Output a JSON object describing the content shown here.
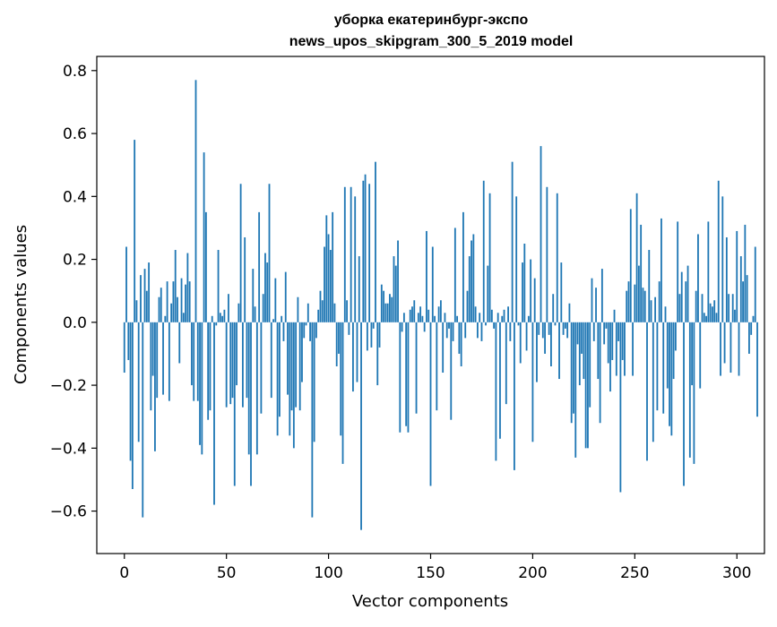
{
  "colors": {
    "bar": "#1f77b4",
    "axes": "#000000",
    "background": "#ffffff"
  },
  "chart_data": {
    "type": "bar",
    "title": "уборка екатеринбург-экспо",
    "subtitle": "news_upos_skipgram_300_5_2019 model",
    "xlabel": "Vector components",
    "ylabel": "Components values",
    "xlim": [
      -13.5,
      313.5
    ],
    "ylim": [
      -0.735,
      0.845
    ],
    "xticks": [
      0,
      50,
      100,
      150,
      200,
      250,
      300
    ],
    "xtick_labels": [
      "0",
      "50",
      "100",
      "150",
      "200",
      "250",
      "300"
    ],
    "yticks": [
      -0.6,
      -0.4,
      -0.2,
      0.0,
      0.2,
      0.4,
      0.6,
      0.8
    ],
    "ytick_labels": [
      "−0.6",
      "−0.4",
      "−0.2",
      "0.0",
      "0.2",
      "0.4",
      "0.6",
      "0.8"
    ],
    "grid": false,
    "legend": "none",
    "values": [
      -0.16,
      0.24,
      -0.12,
      -0.44,
      -0.53,
      0.58,
      0.07,
      -0.38,
      0.15,
      -0.62,
      0.17,
      0.1,
      0.19,
      -0.28,
      -0.17,
      -0.41,
      -0.24,
      0.08,
      0.11,
      -0.23,
      0.02,
      0.13,
      -0.25,
      0.06,
      0.13,
      0.23,
      0.08,
      -0.13,
      0.14,
      0.03,
      0.12,
      0.22,
      0.13,
      -0.2,
      -0.25,
      0.77,
      -0.25,
      -0.39,
      -0.42,
      0.54,
      0.35,
      -0.31,
      -0.28,
      0.02,
      -0.58,
      -0.01,
      0.23,
      0.03,
      0.02,
      0.04,
      -0.27,
      0.09,
      -0.26,
      -0.24,
      -0.52,
      -0.2,
      0.06,
      0.44,
      -0.27,
      0.27,
      -0.24,
      -0.42,
      -0.52,
      0.17,
      0.05,
      -0.42,
      0.35,
      -0.29,
      0.09,
      0.22,
      0.19,
      0.44,
      -0.24,
      0.01,
      0.14,
      -0.36,
      -0.3,
      0.02,
      -0.06,
      0.16,
      -0.23,
      -0.36,
      -0.28,
      -0.4,
      -0.27,
      0.08,
      -0.28,
      -0.19,
      -0.05,
      -0.01,
      0.06,
      -0.06,
      -0.62,
      -0.38,
      -0.05,
      0.04,
      0.1,
      0.07,
      0.24,
      0.34,
      0.28,
      0.23,
      0.35,
      0.06,
      -0.14,
      -0.1,
      -0.36,
      -0.45,
      0.43,
      0.07,
      -0.04,
      0.43,
      -0.22,
      0.4,
      -0.19,
      0.21,
      -0.66,
      0.45,
      0.47,
      -0.09,
      0.44,
      -0.08,
      -0.02,
      0.51,
      -0.2,
      -0.08,
      0.12,
      0.1,
      0.06,
      0.06,
      0.09,
      0.08,
      0.21,
      0.18,
      0.26,
      -0.35,
      -0.03,
      0.03,
      -0.33,
      -0.35,
      0.04,
      0.05,
      0.07,
      -0.29,
      0.03,
      0.05,
      0.02,
      -0.03,
      0.29,
      0.04,
      -0.52,
      0.24,
      0.02,
      -0.28,
      0.05,
      0.07,
      -0.16,
      0.03,
      -0.05,
      -0.02,
      -0.31,
      -0.06,
      0.3,
      0.02,
      -0.1,
      -0.14,
      0.35,
      -0.05,
      0.1,
      0.21,
      0.26,
      0.28,
      0.05,
      -0.05,
      0.03,
      -0.06,
      0.45,
      -0.01,
      0.18,
      0.41,
      0.04,
      -0.02,
      -0.44,
      0.03,
      -0.37,
      0.02,
      0.04,
      -0.26,
      0.05,
      -0.06,
      0.51,
      -0.47,
      0.4,
      -0.01,
      -0.13,
      0.19,
      0.25,
      -0.09,
      0.02,
      0.2,
      -0.38,
      0.14,
      -0.19,
      -0.04,
      0.56,
      -0.05,
      -0.1,
      0.43,
      -0.04,
      -0.14,
      0.09,
      -0.01,
      0.41,
      -0.18,
      0.19,
      -0.04,
      -0.02,
      -0.05,
      0.06,
      -0.32,
      -0.29,
      -0.43,
      -0.07,
      -0.2,
      -0.1,
      -0.18,
      -0.4,
      -0.4,
      -0.27,
      0.14,
      -0.06,
      0.11,
      -0.18,
      -0.32,
      0.17,
      -0.07,
      -0.02,
      -0.13,
      -0.22,
      -0.12,
      0.04,
      -0.17,
      -0.06,
      -0.54,
      -0.12,
      -0.17,
      0.1,
      0.13,
      0.36,
      -0.17,
      0.12,
      0.41,
      0.18,
      0.31,
      0.11,
      0.1,
      -0.44,
      0.23,
      0.07,
      -0.38,
      0.08,
      -0.28,
      0.13,
      0.33,
      -0.29,
      0.05,
      -0.21,
      -0.33,
      -0.36,
      -0.18,
      -0.09,
      0.32,
      0.09,
      0.16,
      -0.52,
      0.13,
      0.18,
      -0.43,
      -0.2,
      -0.45,
      0.1,
      0.28,
      -0.21,
      0.09,
      0.03,
      0.02,
      0.32,
      0.06,
      0.05,
      0.07,
      0.03,
      0.45,
      -0.17,
      0.4,
      -0.13,
      0.27,
      0.09,
      -0.16,
      0.09,
      0.04,
      0.29,
      -0.17,
      0.21,
      0.13,
      0.31,
      0.15,
      -0.1,
      -0.04,
      0.02,
      0.24,
      -0.3
    ]
  }
}
